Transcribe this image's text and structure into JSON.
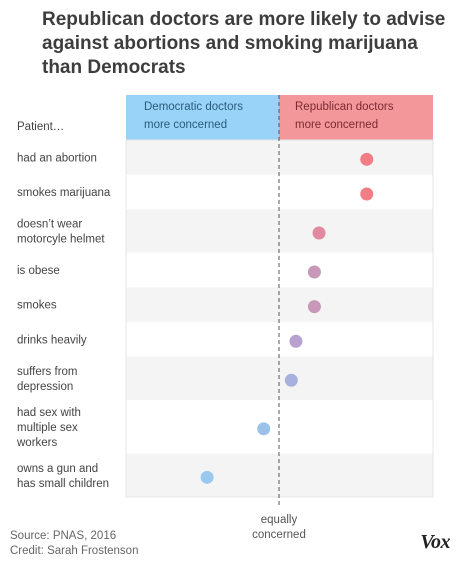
{
  "title": "Republican doctors are more likely to advise against abortions and smoking marijuana than Democrats",
  "footer": {
    "source": "Source: PNAS, 2016",
    "credit": "Credit: Sarah Frostenson"
  },
  "logo": "Vox",
  "colors": {
    "dem_header": "#99d3f7",
    "rep_header": "#f4979b",
    "row_shade": "#f4f4f4"
  },
  "chart_data": {
    "type": "scatter",
    "row_header": "Patient…",
    "left_header": [
      "Democratic doctors",
      "more concerned"
    ],
    "right_header": [
      "Republican doctors",
      "more concerned"
    ],
    "center_label": [
      "equally",
      "concerned"
    ],
    "xlim": [
      -1,
      1
    ],
    "center": 0,
    "rows": [
      {
        "label": [
          "had an abortion"
        ],
        "value": 0.57,
        "color": "#f27d85"
      },
      {
        "label": [
          "smokes marijuana"
        ],
        "value": 0.57,
        "color": "#f27d85"
      },
      {
        "label": [
          "doesn’t wear",
          "motorcyle helmet"
        ],
        "value": 0.26,
        "color": "#e0899f"
      },
      {
        "label": [
          "is obese"
        ],
        "value": 0.23,
        "color": "#c997b8"
      },
      {
        "label": [
          "smokes"
        ],
        "value": 0.23,
        "color": "#c997b8"
      },
      {
        "label": [
          "drinks heavily"
        ],
        "value": 0.11,
        "color": "#b6a1d0"
      },
      {
        "label": [
          "suffers from",
          "depression"
        ],
        "value": 0.08,
        "color": "#a8b0de"
      },
      {
        "label": [
          "had sex with",
          "multiple sex",
          "workers"
        ],
        "value": -0.1,
        "color": "#9dc2ea"
      },
      {
        "label": [
          "owns a gun and",
          "has small children"
        ],
        "value": -0.47,
        "color": "#99c9ef"
      }
    ]
  }
}
